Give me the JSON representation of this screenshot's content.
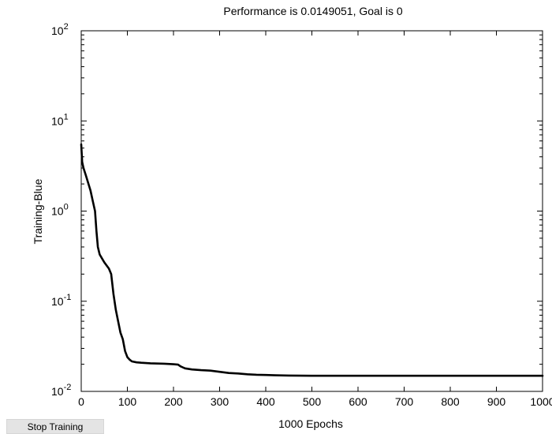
{
  "chart_data": {
    "type": "line",
    "title": "Performance is 0.0149051, Goal is 0",
    "xlabel": "1000 Epochs",
    "ylabel": "Training-Blue",
    "xscale": "linear",
    "yscale": "log",
    "xlim": [
      0,
      1000
    ],
    "ylim": [
      0.01,
      100
    ],
    "xticks": [
      0,
      100,
      200,
      300,
      400,
      500,
      600,
      700,
      800,
      900,
      1000
    ],
    "xtick_labels": [
      "0",
      "100",
      "200",
      "300",
      "400",
      "500",
      "600",
      "700",
      "800",
      "900",
      "1000"
    ],
    "yticks": [
      {
        "value": 0.01,
        "base": "10",
        "exp": "-2"
      },
      {
        "value": 0.1,
        "base": "10",
        "exp": "-1"
      },
      {
        "value": 1,
        "base": "10",
        "exp": "0"
      },
      {
        "value": 10,
        "base": "10",
        "exp": "1"
      },
      {
        "value": 100,
        "base": "10",
        "exp": "2"
      }
    ],
    "grid": false,
    "series": [
      {
        "color": "#000000",
        "x": [
          0,
          2,
          5,
          10,
          20,
          25,
          30,
          33,
          36,
          40,
          50,
          60,
          65,
          70,
          75,
          80,
          85,
          90,
          95,
          100,
          105,
          110,
          120,
          130,
          150,
          180,
          200,
          210,
          215,
          220,
          225,
          240,
          260,
          280,
          300,
          320,
          340,
          360,
          380,
          400,
          420,
          450,
          500,
          600,
          700,
          800,
          900,
          1000
        ],
        "y": [
          5.5,
          3.5,
          3.0,
          2.5,
          1.7,
          1.3,
          1.0,
          0.6,
          0.4,
          0.33,
          0.27,
          0.23,
          0.2,
          0.12,
          0.08,
          0.06,
          0.045,
          0.038,
          0.028,
          0.024,
          0.0225,
          0.0215,
          0.021,
          0.0208,
          0.0205,
          0.0203,
          0.02,
          0.0198,
          0.019,
          0.0185,
          0.018,
          0.0175,
          0.0172,
          0.017,
          0.0165,
          0.016,
          0.0158,
          0.0155,
          0.0153,
          0.0152,
          0.0151,
          0.015,
          0.0149,
          0.0149,
          0.0149,
          0.0149,
          0.0149,
          0.0149051
        ]
      }
    ]
  },
  "controls": {
    "stop_label": "Stop Training"
  }
}
